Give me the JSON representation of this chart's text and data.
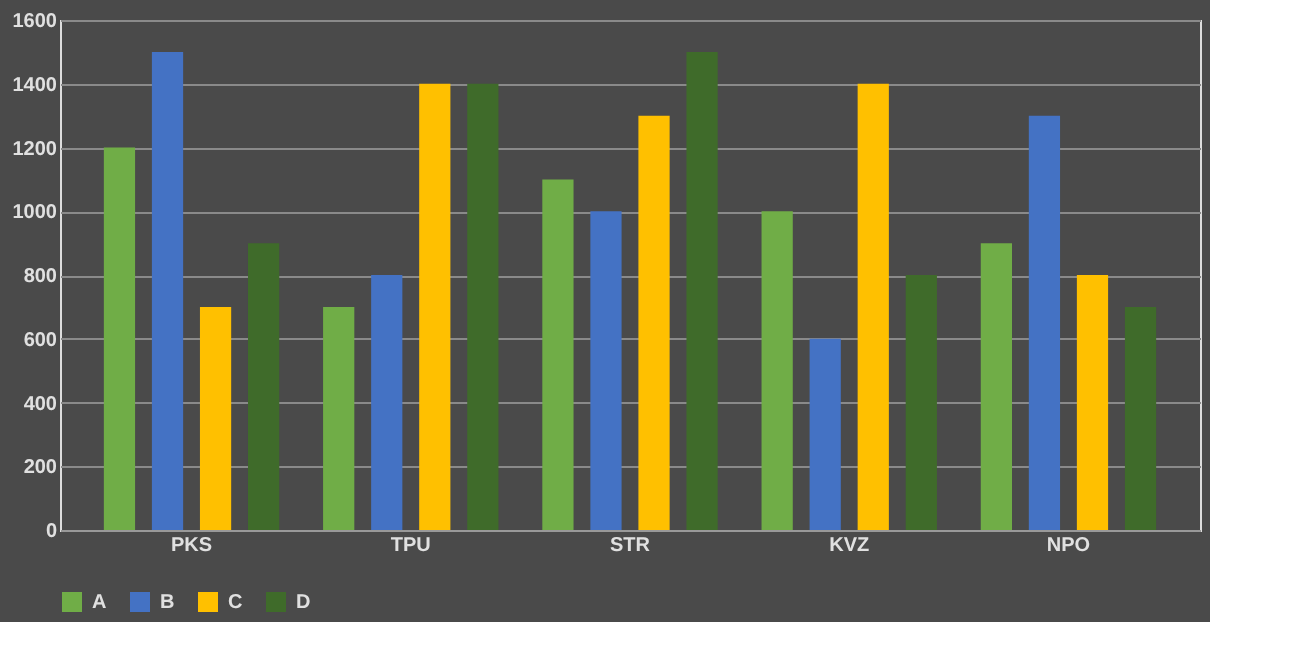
{
  "chart_data": {
    "type": "bar",
    "categories": [
      "PKS",
      "TPU",
      "STR",
      "KVZ",
      "NPO"
    ],
    "series": [
      {
        "name": "A",
        "color": "#70ad47",
        "values": [
          1200,
          700,
          1100,
          1000,
          900
        ]
      },
      {
        "name": "B",
        "color": "#4472c4",
        "values": [
          1500,
          800,
          1000,
          600,
          1300
        ]
      },
      {
        "name": "C",
        "color": "#ffc000",
        "values": [
          700,
          1400,
          1300,
          1400,
          800
        ]
      },
      {
        "name": "D",
        "color": "#3f6b2a",
        "values": [
          900,
          1400,
          1500,
          800,
          700
        ]
      }
    ],
    "ylim": [
      0,
      1600
    ],
    "yticks": [
      0,
      200,
      400,
      600,
      800,
      1000,
      1200,
      1400,
      1600
    ],
    "grid": "y",
    "legend": "bottom"
  }
}
